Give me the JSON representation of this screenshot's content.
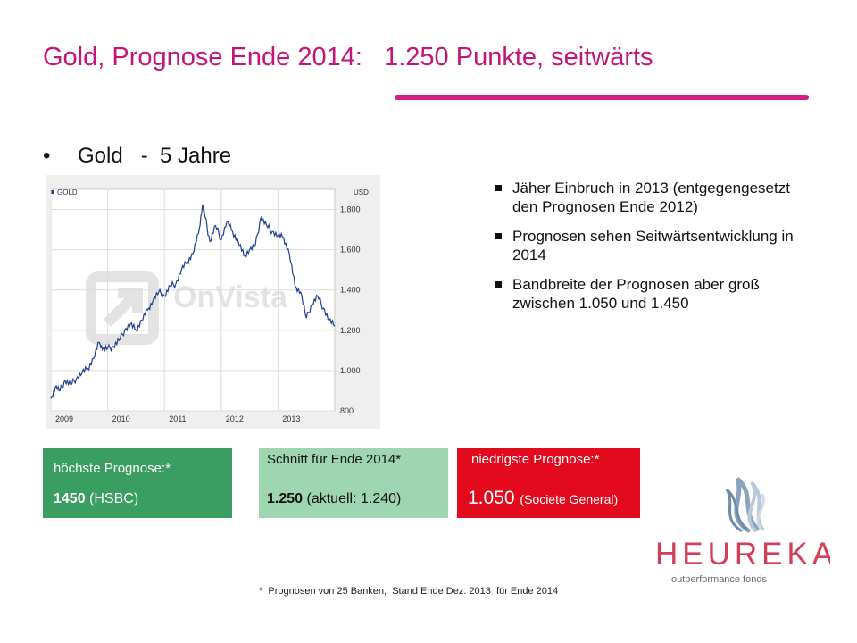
{
  "title": "Gold, Prognose Ende 2014:   1.250 Punkte, seitwärts",
  "bullet": {
    "dot": "•",
    "text": "Gold   -  5 Jahre"
  },
  "chart_data": {
    "type": "line",
    "legend": "GOLD",
    "unit": "USD",
    "watermark": "OnVista",
    "x_ticks": [
      "2009",
      "2010",
      "2011",
      "2012",
      "2013"
    ],
    "y_ticks": [
      "1.800",
      "1.600",
      "1.400",
      "1.200",
      "1.000",
      "800"
    ],
    "ylim": [
      800,
      1900
    ],
    "xlim": [
      2009.0,
      2014.0
    ],
    "grid": true,
    "series": [
      {
        "name": "GOLD",
        "x": [
          2009.0,
          2009.08,
          2009.16,
          2009.25,
          2009.35,
          2009.45,
          2009.55,
          2009.65,
          2009.75,
          2009.85,
          2009.92,
          2010.0,
          2010.1,
          2010.2,
          2010.3,
          2010.4,
          2010.5,
          2010.6,
          2010.7,
          2010.8,
          2010.9,
          2011.0,
          2011.1,
          2011.2,
          2011.3,
          2011.4,
          2011.5,
          2011.6,
          2011.67,
          2011.72,
          2011.8,
          2011.9,
          2012.0,
          2012.1,
          2012.2,
          2012.3,
          2012.4,
          2012.5,
          2012.6,
          2012.7,
          2012.8,
          2012.9,
          2013.0,
          2013.1,
          2013.2,
          2013.3,
          2013.4,
          2013.5,
          2013.6,
          2013.7,
          2013.8,
          2013.9,
          2014.0
        ],
        "values": [
          860,
          920,
          900,
          950,
          930,
          960,
          990,
          1010,
          1060,
          1140,
          1110,
          1110,
          1120,
          1150,
          1200,
          1230,
          1200,
          1250,
          1300,
          1350,
          1390,
          1370,
          1420,
          1430,
          1500,
          1540,
          1580,
          1680,
          1820,
          1760,
          1640,
          1720,
          1650,
          1740,
          1690,
          1640,
          1570,
          1600,
          1620,
          1760,
          1720,
          1690,
          1670,
          1660,
          1580,
          1420,
          1390,
          1260,
          1330,
          1370,
          1310,
          1250,
          1220
        ]
      }
    ]
  },
  "points": [
    "Jäher Einbruch in 2013 (entgegengesetzt den Prognosen Ende 2012)",
    "Prognosen sehen Seitwärtsentwicklung in 2014",
    "Bandbreite der Prognosen aber groß zwischen 1.050 und 1.450"
  ],
  "boxes": {
    "high": {
      "label": "höchste Prognose:*",
      "value": "1450",
      "source": "(HSBC)",
      "color": "#3a9d62"
    },
    "avg": {
      "label": "Schnitt für Ende 2014*",
      "value": "1.250",
      "note": "(aktuell: 1.240)",
      "color": "#9dd6b0"
    },
    "low": {
      "label": "niedrigste Prognose:*",
      "value": "1.050",
      "source": "(Societe General)",
      "color": "#e20a1c"
    }
  },
  "logo": {
    "name": "HEUREKA",
    "tagline": "outperformance fonds"
  },
  "footnote": "*  Prognosen von 25 Banken,  Stand Ende Dez. 2013  für Ende 2014",
  "colors": {
    "title": "#c4147a",
    "rule": "#d61f86",
    "line": "#1f3f8f"
  }
}
